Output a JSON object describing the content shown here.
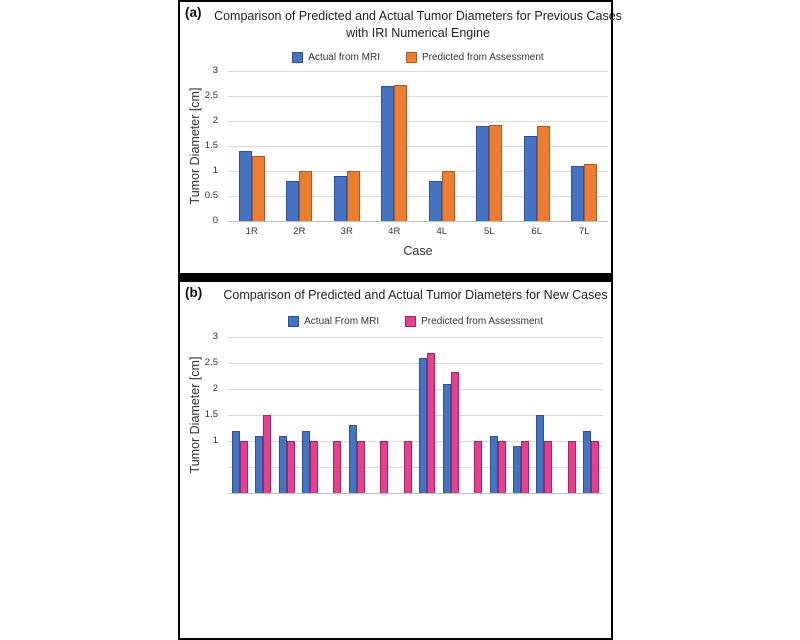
{
  "page": {
    "background": "#ffffff"
  },
  "panel": {
    "border_color": "#000000",
    "divider_color": "#000000"
  },
  "chart_data": [
    {
      "type": "bar",
      "panel_label": "(a)",
      "title_lines": [
        "Comparison of Predicted and Actual Tumor Diameters for Previous Cases",
        "with IRI Numerical Engine"
      ],
      "xlabel": "Case",
      "ylabel": "Tumor Diameter [cm]",
      "ylim": [
        0,
        3
      ],
      "ytick_step": 0.5,
      "yticks_labeled": [
        0,
        0.5,
        1,
        1.5,
        2,
        2.5,
        3
      ],
      "grid": true,
      "legend_position": "top-center",
      "categories": [
        "1R",
        "2R",
        "3R",
        "4R",
        "4L",
        "5L",
        "6L",
        "7L"
      ],
      "series": [
        {
          "name": "Actual from MRI",
          "color": "#4472C4",
          "border_color": "#2F5496",
          "values": [
            1.4,
            0.8,
            0.9,
            2.7,
            0.8,
            1.9,
            1.7,
            1.1
          ]
        },
        {
          "name": "Predicted from Assessment",
          "color": "#ED7D31",
          "border_color": "#AE5A21",
          "values": [
            1.3,
            1.0,
            1.0,
            2.73,
            1.0,
            1.92,
            1.9,
            1.15
          ]
        }
      ]
    },
    {
      "type": "bar",
      "panel_label": "(b)",
      "title_lines": [
        "Comparison of Predicted and Actual Tumor Diameters for New Cases"
      ],
      "xlabel": "",
      "ylabel": "Tumor Diameter [cm]",
      "ylim": [
        0,
        3
      ],
      "ytick_step": 0.5,
      "yticks_labeled": [
        1,
        1.5,
        2,
        2.5,
        3
      ],
      "grid": true,
      "legend_position": "top-center",
      "categories": [
        "",
        "",
        "",
        "",
        "",
        "",
        "",
        "",
        "",
        "",
        "",
        "",
        "",
        "",
        "",
        ""
      ],
      "crop_note": "chart cropped at bottom edge of screenshot; x-axis labels and bars shorter than ~0.95 cm are not visible",
      "series": [
        {
          "name": "Actual From MRI",
          "color": "#4472C4",
          "border_color": "#2F5496",
          "values": [
            1.2,
            1.1,
            1.1,
            1.2,
            null,
            1.3,
            null,
            null,
            2.6,
            2.1,
            null,
            1.1,
            0.9,
            1.5,
            null,
            1.2
          ]
        },
        {
          "name": "Predicted from Assessment",
          "color": "#E83E8C",
          "border_color": "#A62465",
          "values": [
            1.0,
            1.5,
            1.0,
            1.0,
            1.0,
            1.0,
            1.0,
            1.0,
            2.7,
            2.33,
            1.0,
            1.0,
            1.0,
            1.0,
            1.0,
            1.0
          ]
        }
      ]
    }
  ]
}
